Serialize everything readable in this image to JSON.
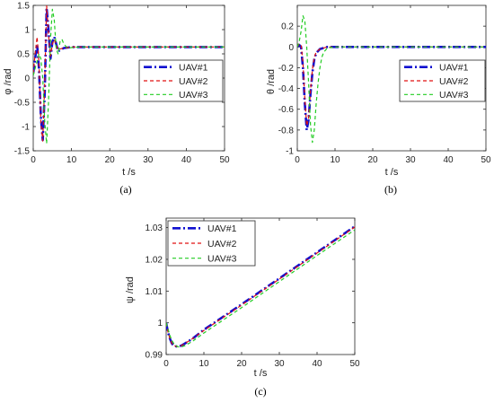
{
  "chart_data": [
    {
      "type": "line",
      "panel_label": "(a)",
      "xlabel": "t /s",
      "ylabel": "φ /rad",
      "xlim": [
        0,
        50
      ],
      "ylim": [
        -1.5,
        1.5
      ],
      "xticks": [
        0,
        10,
        20,
        30,
        40,
        50
      ],
      "yticks": [
        -1.5,
        -1,
        -0.5,
        0,
        0.5,
        1,
        1.5
      ],
      "xtick_labels": [
        "0",
        "10",
        "20",
        "30",
        "40",
        "50"
      ],
      "ytick_labels": [
        "-1.5",
        "-1",
        "-0.5",
        "0",
        "0.5",
        "1",
        "1.5"
      ],
      "grid": false,
      "legend_position": "right",
      "series": [
        {
          "name": "UAV#1",
          "color": "#1010d0",
          "dash": "9,3,2,3",
          "width": 2.6,
          "x": [
            0,
            0.5,
            1,
            1.5,
            2,
            2.5,
            3,
            3.5,
            4,
            4.5,
            5,
            5.5,
            6,
            6.5,
            7,
            8,
            9,
            10,
            12,
            15,
            20,
            30,
            40,
            50
          ],
          "y": [
            0.1,
            0.4,
            0.7,
            0.2,
            -0.8,
            -1.28,
            -0.3,
            1.45,
            1.0,
            0.4,
            0.75,
            0.85,
            0.7,
            0.55,
            0.58,
            0.62,
            0.63,
            0.64,
            0.64,
            0.64,
            0.64,
            0.64,
            0.64,
            0.64
          ]
        },
        {
          "name": "UAV#2",
          "color": "#e01010",
          "dash": "4,3",
          "width": 1.2,
          "x": [
            0,
            0.5,
            1,
            1.5,
            2,
            2.5,
            3,
            3.5,
            4,
            4.5,
            5,
            5.5,
            6,
            6.5,
            7,
            8,
            9,
            10,
            12,
            15,
            20,
            30,
            40,
            50
          ],
          "y": [
            0.1,
            0.5,
            0.85,
            0.3,
            -0.9,
            -1.3,
            -0.1,
            1.5,
            0.9,
            0.45,
            0.7,
            0.8,
            0.68,
            0.58,
            0.6,
            0.62,
            0.63,
            0.64,
            0.64,
            0.64,
            0.64,
            0.64,
            0.64,
            0.64
          ]
        },
        {
          "name": "UAV#3",
          "color": "#22cc22",
          "dash": "4,3",
          "width": 1.2,
          "x": [
            0,
            0.5,
            1,
            1.5,
            2,
            2.5,
            3,
            3.5,
            4,
            4.5,
            5,
            5.5,
            6,
            6.5,
            7,
            7.5,
            8,
            9,
            10,
            12,
            15,
            20,
            30,
            40,
            50
          ],
          "y": [
            0.05,
            0.2,
            0.35,
            0.5,
            0.4,
            0.0,
            -0.9,
            -1.35,
            -0.5,
            0.8,
            1.42,
            1.2,
            0.6,
            0.5,
            0.75,
            0.8,
            0.7,
            0.62,
            0.63,
            0.64,
            0.64,
            0.64,
            0.64,
            0.64,
            0.64
          ]
        }
      ]
    },
    {
      "type": "line",
      "panel_label": "(b)",
      "xlabel": "t /s",
      "ylabel": "θ /rad",
      "xlim": [
        0,
        50
      ],
      "ylim": [
        -1,
        0.4
      ],
      "xticks": [
        0,
        10,
        20,
        30,
        40,
        50
      ],
      "yticks": [
        -1,
        -0.8,
        -0.6,
        -0.4,
        -0.2,
        0,
        0.2
      ],
      "xtick_labels": [
        "0",
        "10",
        "20",
        "30",
        "40",
        "50"
      ],
      "ytick_labels": [
        "-1",
        "-0.8",
        "-0.6",
        "-0.4",
        "-0.2",
        "0",
        "0.2"
      ],
      "grid": false,
      "legend_position": "right",
      "series": [
        {
          "name": "UAV#1",
          "color": "#1010d0",
          "dash": "9,3,2,3",
          "width": 2.6,
          "x": [
            0,
            0.5,
            1,
            1.5,
            2,
            2.5,
            3,
            3.5,
            4,
            4.5,
            5,
            6,
            7,
            8,
            10,
            20,
            30,
            40,
            50
          ],
          "y": [
            0,
            0.02,
            0.0,
            -0.2,
            -0.55,
            -0.8,
            -0.7,
            -0.45,
            -0.25,
            -0.12,
            -0.06,
            -0.02,
            -0.01,
            0,
            0,
            0,
            0,
            0,
            0
          ]
        },
        {
          "name": "UAV#2",
          "color": "#e01010",
          "dash": "4,3",
          "width": 1.2,
          "x": [
            0,
            0.5,
            1,
            1.5,
            2,
            2.5,
            3,
            3.5,
            4,
            4.5,
            5,
            6,
            7,
            8,
            10,
            20,
            30,
            40,
            50
          ],
          "y": [
            0,
            0.03,
            0.02,
            -0.15,
            -0.5,
            -0.76,
            -0.68,
            -0.42,
            -0.22,
            -0.1,
            -0.05,
            -0.02,
            -0.01,
            0,
            0,
            0,
            0,
            0,
            0
          ]
        },
        {
          "name": "UAV#3",
          "color": "#22cc22",
          "dash": "4,3",
          "width": 1.2,
          "x": [
            0,
            0.5,
            1,
            1.5,
            2,
            2.5,
            3,
            3.5,
            4,
            4.5,
            5,
            5.5,
            6,
            6.5,
            7,
            8,
            10,
            20,
            30,
            40,
            50
          ],
          "y": [
            0,
            0.05,
            0.15,
            0.3,
            0.25,
            0.0,
            -0.35,
            -0.75,
            -0.92,
            -0.8,
            -0.55,
            -0.35,
            -0.2,
            -0.1,
            -0.05,
            -0.01,
            0,
            0,
            0,
            0,
            0
          ]
        }
      ]
    },
    {
      "type": "line",
      "panel_label": "(c)",
      "xlabel": "t /s",
      "ylabel": "ψ /rad",
      "xlim": [
        0,
        50
      ],
      "ylim": [
        0.99,
        1.033
      ],
      "xticks": [
        0,
        10,
        20,
        30,
        40,
        50
      ],
      "yticks": [
        0.99,
        1,
        1.01,
        1.02,
        1.03
      ],
      "xtick_labels": [
        "0",
        "10",
        "20",
        "30",
        "40",
        "50"
      ],
      "ytick_labels": [
        "0.99",
        "1",
        "1.01",
        "1.02",
        "1.03"
      ],
      "grid": false,
      "legend_position": "top-left",
      "series": [
        {
          "name": "UAV#1",
          "color": "#1010d0",
          "dash": "9,3,2,3",
          "width": 2.6,
          "x": [
            0,
            0.5,
            1,
            1.5,
            2,
            3,
            4,
            5,
            7,
            10,
            20,
            30,
            40,
            50
          ],
          "y": [
            1.0,
            0.997,
            0.995,
            0.9935,
            0.9928,
            0.9925,
            0.9928,
            0.9935,
            0.995,
            0.9978,
            1.0058,
            1.014,
            1.0222,
            1.0304
          ]
        },
        {
          "name": "UAV#2",
          "color": "#e01010",
          "dash": "4,3",
          "width": 1.2,
          "x": [
            0,
            0.5,
            1,
            1.5,
            2,
            3,
            4,
            5,
            7,
            10,
            20,
            30,
            40,
            50
          ],
          "y": [
            1.0,
            0.997,
            0.995,
            0.9935,
            0.9928,
            0.9925,
            0.9928,
            0.9935,
            0.995,
            0.9976,
            1.0056,
            1.0138,
            1.022,
            1.0302
          ]
        },
        {
          "name": "UAV#3",
          "color": "#22cc22",
          "dash": "4,3",
          "width": 1.2,
          "x": [
            0,
            0.5,
            1,
            1.5,
            2,
            3,
            4,
            5,
            7,
            10,
            20,
            30,
            40,
            50
          ],
          "y": [
            1.0,
            0.998,
            0.996,
            0.9945,
            0.9935,
            0.9925,
            0.9924,
            0.9928,
            0.9942,
            0.9968,
            1.0048,
            1.013,
            1.0212,
            1.0293
          ]
        }
      ]
    }
  ]
}
